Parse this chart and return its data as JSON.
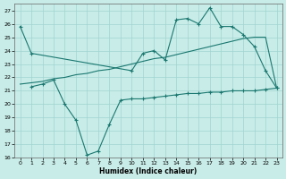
{
  "xlabel": "Humidex (Indice chaleur)",
  "background_color": "#c8ece8",
  "grid_color": "#a0d4d0",
  "line_color": "#1a7870",
  "xlim": [
    -0.5,
    23.5
  ],
  "ylim": [
    16,
    27.5
  ],
  "yticks": [
    16,
    17,
    18,
    19,
    20,
    21,
    22,
    23,
    24,
    25,
    26,
    27
  ],
  "xticks": [
    0,
    1,
    2,
    3,
    4,
    5,
    6,
    7,
    8,
    9,
    10,
    11,
    12,
    13,
    14,
    15,
    16,
    17,
    18,
    19,
    20,
    21,
    22,
    23
  ],
  "series1_x": [
    0,
    1,
    10,
    11,
    12,
    13,
    14,
    15,
    16,
    17,
    18,
    19,
    20,
    21,
    22,
    23
  ],
  "series1_y": [
    25.8,
    23.8,
    22.5,
    23.8,
    24.0,
    23.3,
    26.3,
    26.4,
    26.0,
    27.2,
    25.8,
    25.8,
    25.2,
    24.3,
    22.5,
    21.2
  ],
  "series2_x": [
    1,
    2,
    3,
    4,
    5,
    6,
    7,
    8,
    9,
    10,
    11,
    12,
    13,
    14,
    15,
    16,
    17,
    18,
    19,
    20,
    21,
    22,
    23
  ],
  "series2_y": [
    21.3,
    21.5,
    21.8,
    20.0,
    18.8,
    16.2,
    16.5,
    18.5,
    20.3,
    20.4,
    20.4,
    20.5,
    20.6,
    20.7,
    20.8,
    20.8,
    20.9,
    20.9,
    21.0,
    21.0,
    21.0,
    21.1,
    21.2
  ],
  "series3_x": [
    0,
    1,
    2,
    3,
    4,
    5,
    6,
    7,
    8,
    9,
    10,
    11,
    12,
    13,
    14,
    15,
    16,
    17,
    18,
    19,
    20,
    21,
    22,
    23
  ],
  "series3_y": [
    21.5,
    21.6,
    21.7,
    21.9,
    22.0,
    22.2,
    22.3,
    22.5,
    22.6,
    22.8,
    23.0,
    23.2,
    23.4,
    23.5,
    23.7,
    23.9,
    24.1,
    24.3,
    24.5,
    24.7,
    24.9,
    25.0,
    25.0,
    21.2
  ]
}
